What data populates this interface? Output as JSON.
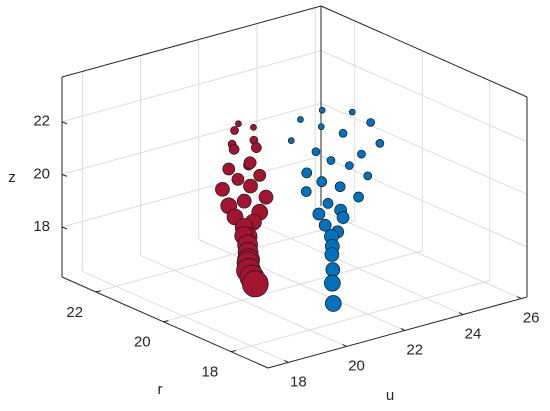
{
  "chart_data": {
    "type": "scatter3d",
    "xlabel": "u",
    "ylabel": "r",
    "zlabel": "z",
    "xlim": [
      17.3,
      26.2
    ],
    "ylim": [
      16.9,
      23.0
    ],
    "zlim": [
      16.1,
      23.7
    ],
    "xticks": [
      18,
      20,
      22,
      24,
      26
    ],
    "yticks": [
      18,
      20,
      22
    ],
    "zticks": [
      18,
      20,
      22
    ],
    "grid": true,
    "series": [
      {
        "color": "#a2142f",
        "x": [
          19.3,
          19.7,
          19.4,
          19.6,
          19.2,
          19.8,
          19.5,
          19.3,
          19.7,
          19.2,
          19.8,
          19.4,
          19.6,
          19.1,
          19.9,
          19.5,
          19.2,
          19.8,
          19.3,
          19.7,
          19.5,
          19.4,
          19.6,
          19.5,
          19.4,
          19.3,
          19.4,
          19.3,
          19.3,
          19.3
        ],
        "y": [
          19.5,
          19.4,
          19.7,
          19.3,
          19.6,
          19.4,
          19.8,
          19.2,
          19.5,
          19.7,
          19.3,
          19.6,
          19.4,
          19.8,
          19.2,
          19.5,
          19.7,
          19.3,
          19.6,
          19.4,
          19.5,
          19.3,
          19.6,
          19.4,
          19.3,
          19.2,
          19.3,
          19.2,
          19.1,
          19.0
        ],
        "z": [
          23.3,
          23.1,
          22.9,
          22.7,
          22.5,
          22.3,
          22.1,
          21.9,
          21.7,
          21.5,
          21.3,
          21.1,
          20.9,
          20.7,
          20.5,
          20.3,
          20.1,
          19.9,
          19.7,
          19.5,
          19.3,
          19.1,
          18.9,
          18.7,
          18.5,
          18.3,
          18.1,
          17.9,
          17.7,
          17.5
        ],
        "size": [
          3,
          3,
          4,
          4,
          4,
          5,
          5,
          5,
          6,
          6,
          6,
          6,
          7,
          7,
          7,
          7,
          8,
          8,
          8,
          8,
          9,
          9,
          9,
          10,
          10,
          11,
          11,
          12,
          12,
          13
        ]
      },
      {
        "color": "#0072bd",
        "x": [
          21.6,
          22.4,
          21.2,
          22.8,
          21.8,
          22.2,
          21.0,
          23.0,
          21.5,
          22.6,
          21.9,
          22.3,
          21.3,
          22.7,
          21.7,
          22.1,
          21.4,
          22.5,
          21.8,
          22.0,
          21.6,
          22.2,
          21.7,
          21.9,
          21.8,
          21.6,
          21.7,
          21.5,
          21.6,
          21.4
        ],
        "y": [
          19.0,
          18.8,
          19.3,
          18.6,
          19.2,
          18.9,
          19.4,
          18.5,
          19.1,
          18.7,
          19.0,
          18.8,
          19.2,
          18.6,
          19.1,
          18.9,
          19.3,
          18.7,
          19.0,
          18.8,
          19.1,
          18.9,
          19.0,
          18.8,
          18.9,
          18.7,
          18.8,
          18.6,
          18.7,
          18.5
        ],
        "z": [
          23.4,
          23.2,
          23.0,
          22.8,
          22.6,
          22.4,
          22.2,
          22.0,
          21.8,
          21.6,
          21.4,
          21.2,
          21.0,
          20.8,
          20.6,
          20.4,
          20.2,
          20.0,
          19.8,
          19.6,
          19.4,
          19.2,
          19.0,
          18.8,
          18.6,
          18.4,
          18.0,
          17.6,
          17.0,
          16.4
        ],
        "size": [
          3,
          3,
          3,
          4,
          3,
          4,
          3,
          4,
          4,
          4,
          4,
          4,
          5,
          4,
          5,
          5,
          5,
          5,
          5,
          6,
          6,
          6,
          6,
          6,
          7,
          7,
          7,
          7,
          8,
          8
        ]
      }
    ]
  }
}
